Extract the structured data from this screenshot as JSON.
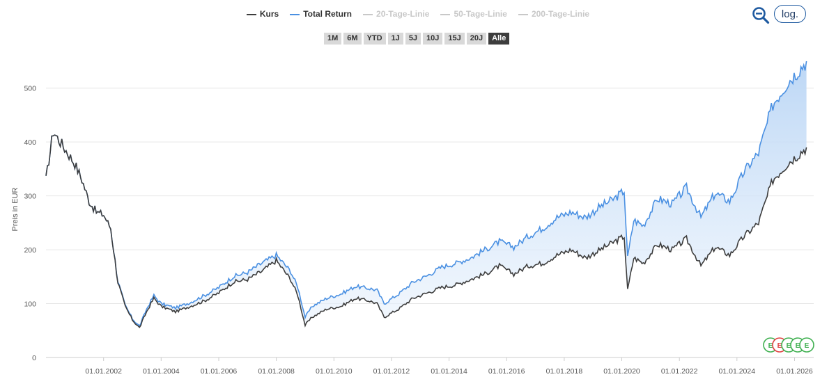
{
  "legend": [
    {
      "label": "Kurs",
      "color": "#3d3d3d",
      "active": true
    },
    {
      "label": "Total Return",
      "color": "#4a90e2",
      "active": true
    },
    {
      "label": "20-Tage-Linie",
      "color": "#c8c8c8",
      "active": false
    },
    {
      "label": "50-Tage-Linie",
      "color": "#c8c8c8",
      "active": false
    },
    {
      "label": "200-Tage-Linie",
      "color": "#c8c8c8",
      "active": false
    }
  ],
  "ranges": [
    "1M",
    "6M",
    "YTD",
    "1J",
    "5J",
    "10J",
    "15J",
    "20J",
    "Alle"
  ],
  "active_range": "Alle",
  "toolbar": {
    "log_label": "log.",
    "zoom_icon": "zoom-out-icon"
  },
  "events": [
    "E",
    "E",
    "E",
    "E",
    "E"
  ],
  "chart_data": {
    "type": "line",
    "xlabel": "",
    "ylabel": "Preis in EUR",
    "ylim": [
      0,
      550
    ],
    "xlim": [
      "2000-01-01",
      "2026-09-01"
    ],
    "y_ticks": [
      0,
      100,
      200,
      300,
      400,
      500
    ],
    "x_ticks": [
      "01.01.2002",
      "01.01.2004",
      "01.01.2006",
      "01.01.2008",
      "01.01.2010",
      "01.01.2012",
      "01.01.2014",
      "01.01.2016",
      "01.01.2018",
      "01.01.2020",
      "01.01.2022",
      "01.01.2024",
      "01.01.2026"
    ],
    "grid": true,
    "legend_position": "top",
    "series": [
      {
        "name": "Kurs",
        "color": "#3d3d3d",
        "x": [
          "2000-01-01",
          "2000-04-01",
          "2000-07-01",
          "2000-10-01",
          "2001-01-01",
          "2001-04-01",
          "2001-07-01",
          "2001-10-01",
          "2002-01-01",
          "2002-04-01",
          "2002-07-01",
          "2002-10-01",
          "2003-01-01",
          "2003-04-01",
          "2003-07-01",
          "2003-10-01",
          "2004-01-01",
          "2004-07-01",
          "2005-01-01",
          "2005-07-01",
          "2006-01-01",
          "2006-07-01",
          "2007-01-01",
          "2007-07-01",
          "2008-01-01",
          "2008-07-01",
          "2008-10-01",
          "2009-01-01",
          "2009-04-01",
          "2009-10-01",
          "2010-04-01",
          "2010-10-01",
          "2011-04-01",
          "2011-07-01",
          "2011-10-01",
          "2012-04-01",
          "2012-10-01",
          "2013-04-01",
          "2013-10-01",
          "2014-04-01",
          "2014-10-01",
          "2015-04-01",
          "2015-10-01",
          "2016-04-01",
          "2016-10-01",
          "2017-04-01",
          "2017-10-01",
          "2018-04-01",
          "2018-10-01",
          "2019-04-01",
          "2019-10-01",
          "2020-02-01",
          "2020-03-15",
          "2020-06-01",
          "2020-10-01",
          "2021-04-01",
          "2021-10-01",
          "2022-04-01",
          "2022-10-01",
          "2023-04-01",
          "2023-10-01",
          "2024-04-01",
          "2024-10-01",
          "2025-04-01",
          "2025-10-01",
          "2026-06-01"
        ],
        "y": [
          330,
          420,
          400,
          380,
          360,
          330,
          290,
          270,
          265,
          240,
          140,
          95,
          70,
          55,
          85,
          110,
          95,
          85,
          95,
          105,
          120,
          140,
          145,
          160,
          180,
          145,
          115,
          60,
          75,
          90,
          95,
          110,
          105,
          100,
          75,
          90,
          110,
          120,
          130,
          135,
          145,
          155,
          170,
          155,
          170,
          175,
          190,
          200,
          185,
          200,
          215,
          225,
          125,
          185,
          175,
          210,
          200,
          220,
          170,
          205,
          190,
          225,
          250,
          330,
          360,
          390
        ]
      },
      {
        "name": "Total Return",
        "color": "#4a90e2",
        "x": [
          "2000-01-01",
          "2000-04-01",
          "2000-07-01",
          "2000-10-01",
          "2001-01-01",
          "2001-04-01",
          "2001-07-01",
          "2001-10-01",
          "2002-01-01",
          "2002-04-01",
          "2002-07-01",
          "2002-10-01",
          "2003-01-01",
          "2003-04-01",
          "2003-07-01",
          "2003-10-01",
          "2004-01-01",
          "2004-07-01",
          "2005-01-01",
          "2005-07-01",
          "2006-01-01",
          "2006-07-01",
          "2007-01-01",
          "2007-07-01",
          "2008-01-01",
          "2008-07-01",
          "2008-10-01",
          "2009-01-01",
          "2009-04-01",
          "2009-10-01",
          "2010-04-01",
          "2010-10-01",
          "2011-04-01",
          "2011-07-01",
          "2011-10-01",
          "2012-04-01",
          "2012-10-01",
          "2013-04-01",
          "2013-10-01",
          "2014-04-01",
          "2014-10-01",
          "2015-04-01",
          "2015-10-01",
          "2016-04-01",
          "2016-10-01",
          "2017-04-01",
          "2017-10-01",
          "2018-04-01",
          "2018-10-01",
          "2019-04-01",
          "2019-10-01",
          "2020-02-01",
          "2020-03-15",
          "2020-06-01",
          "2020-10-01",
          "2021-04-01",
          "2021-10-01",
          "2022-04-01",
          "2022-10-01",
          "2023-04-01",
          "2023-10-01",
          "2024-04-01",
          "2024-10-01",
          "2025-04-01",
          "2025-10-01",
          "2026-06-01"
        ],
        "y": [
          330,
          420,
          400,
          380,
          360,
          330,
          290,
          270,
          265,
          240,
          142,
          97,
          72,
          58,
          90,
          115,
          100,
          92,
          102,
          115,
          130,
          150,
          158,
          175,
          190,
          160,
          130,
          75,
          95,
          110,
          118,
          132,
          128,
          125,
          100,
          118,
          140,
          152,
          168,
          175,
          185,
          200,
          215,
          205,
          225,
          240,
          260,
          270,
          260,
          280,
          295,
          310,
          185,
          255,
          245,
          295,
          285,
          315,
          260,
          305,
          290,
          345,
          380,
          470,
          510,
          550
        ]
      }
    ]
  }
}
